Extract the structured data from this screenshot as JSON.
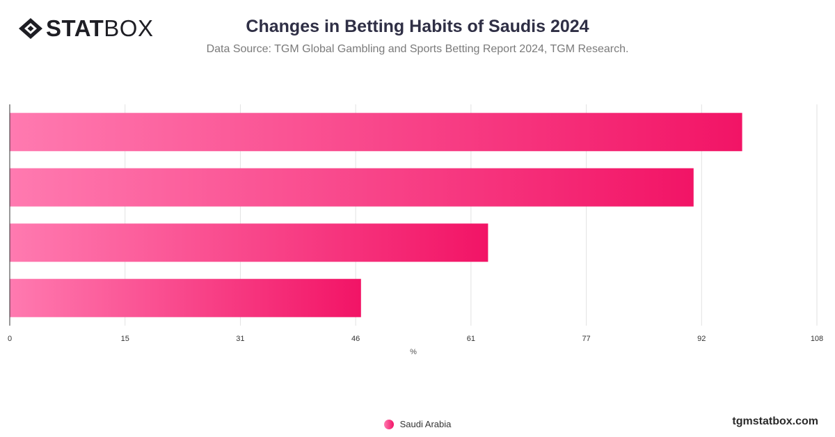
{
  "brand": {
    "logo_bold": "STAT",
    "logo_light": "BOX",
    "logo_icon": "diamond-logo-icon",
    "watermark": "tgmstatbox.com"
  },
  "header": {
    "title": "Changes in Betting Habits of Saudis 2024",
    "subtitle": "Data Source: TGM Global Gambling and Sports Betting Report 2024, TGM Research."
  },
  "colors": {
    "bar_start": "#ff7ab0",
    "bar_end": "#f21466",
    "grid": "#e2e2e2",
    "axis": "#333333"
  },
  "chart_data": {
    "type": "bar",
    "orientation": "horizontal",
    "categories": [
      "",
      "",
      "",
      ""
    ],
    "series": [
      {
        "name": "Saudi Arabia",
        "values": [
          98,
          91.5,
          64,
          47
        ]
      }
    ],
    "xlabel": "%",
    "xlim": [
      0,
      108
    ],
    "xticks": [
      "0",
      "15",
      "31",
      "46",
      "61",
      "77",
      "92",
      "108"
    ],
    "grid": true,
    "legend_position": "bottom-center"
  }
}
